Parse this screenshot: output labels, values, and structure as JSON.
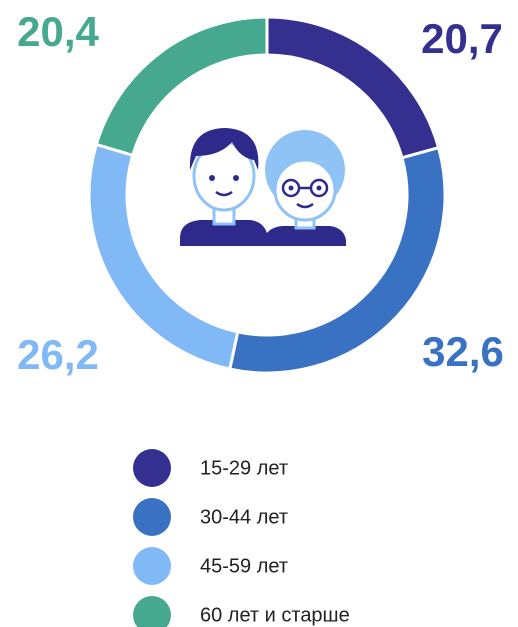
{
  "chart_data": {
    "type": "donut",
    "categories": [
      "15-29 лет",
      "30-44 лет",
      "45-59 лет",
      "60 лет и старше"
    ],
    "values": [
      20.7,
      32.6,
      26.2,
      20.4
    ],
    "value_labels": [
      "20,7",
      "32,6",
      "26,2",
      "20,4"
    ],
    "colors": [
      "#35308f",
      "#3a72c3",
      "#80b9f5",
      "#46a98f"
    ]
  }
}
